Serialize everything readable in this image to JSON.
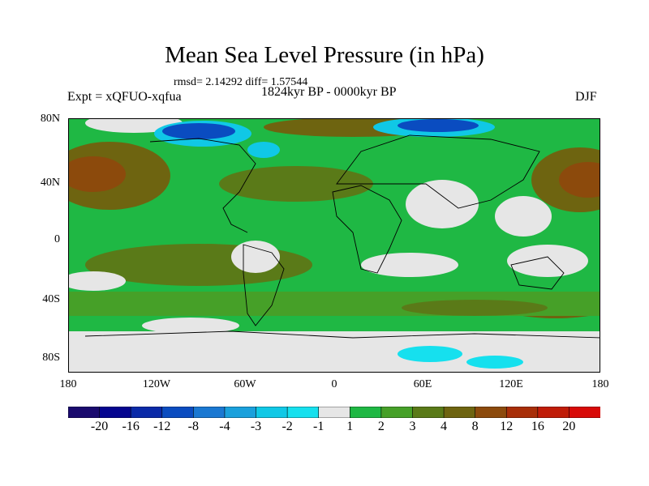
{
  "title": "Mean Sea Level Pressure (in hPa)",
  "stats": "rmsd= 2.14292 diff= 1.57544",
  "period": "1824kyr BP - 0000kyr BP",
  "experiment": "Expt = xQFUO-xqfua",
  "season": "DJF",
  "lat_labels": [
    "80N",
    "40N",
    "0",
    "40S",
    "80S"
  ],
  "lon_labels": [
    "180",
    "120W",
    "60W",
    "0",
    "60E",
    "120E",
    "180"
  ],
  "colorbar": {
    "labels": [
      "-20",
      "-16",
      "-12",
      "-8",
      "-4",
      "-3",
      "-2",
      "-1",
      "1",
      "2",
      "3",
      "4",
      "8",
      "12",
      "16",
      "20"
    ],
    "colors": [
      "#1a0a6e",
      "#05058f",
      "#0a2aa8",
      "#0a4cc0",
      "#1a78d2",
      "#1aa0dc",
      "#10c8e6",
      "#16e0ee",
      "#e6e6e6",
      "#1fb844",
      "#46a028",
      "#5a7a18",
      "#6e6410",
      "#8c4a0c",
      "#a82e08",
      "#c01c08",
      "#d80a08"
    ]
  }
}
